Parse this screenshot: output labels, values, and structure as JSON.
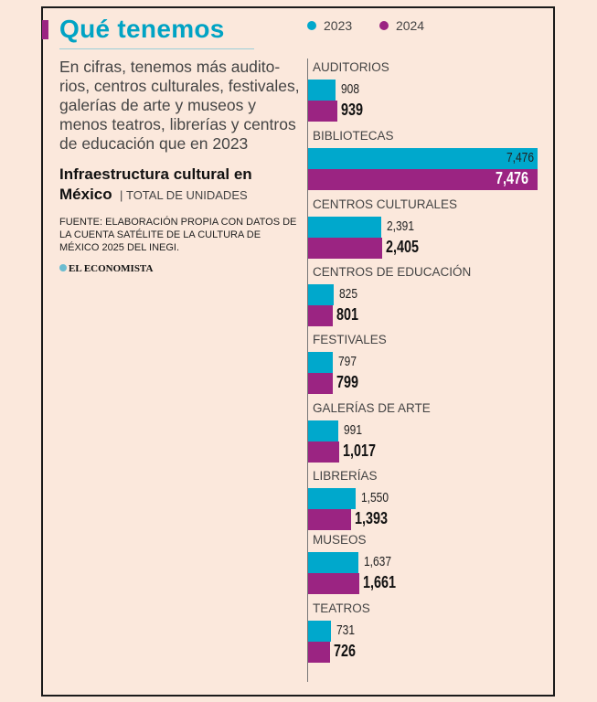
{
  "header": {
    "title": "Qué tenemos",
    "description": "En cifras, tenemos más audito-rios, centros culturales, festivales, galerías de arte y museos y menos teatros, librerías y centros de educación que en 2023",
    "subtitle_bold": "Infraestructura cultural en México",
    "subtitle_units": "TOTAL DE UNIDADES",
    "source": "FUENTE: ELABORACIÓN PROPIA CON DATOS DE LA CUENTA SATÉLITE DE LA CULTURA DE MÉXICO 2025 DEL INEGI.",
    "logo": "EL ECONOMISTA"
  },
  "colors": {
    "2023": "#00a8cc",
    "2024": "#9b2482"
  },
  "chart_data": {
    "type": "bar",
    "orientation": "horizontal",
    "title": "Infraestructura cultural en México",
    "unit": "TOTAL DE UNIDADES",
    "legend": "top",
    "grid": false,
    "categories": [
      "AUDITORIOS",
      "BIBLIOTECAS",
      "CENTROS CULTURALES",
      "CENTROS DE EDUCACIÓN",
      "FESTIVALES",
      "GALERÍAS DE ARTE",
      "LIBRERÍAS",
      "MUSEOS",
      "TEATROS"
    ],
    "series": [
      {
        "name": "2023",
        "values": [
          908,
          7476,
          2391,
          825,
          797,
          991,
          1550,
          1637,
          731
        ],
        "labels": [
          "908",
          "7,476",
          "2,391",
          "825",
          "797",
          "991",
          "1,550",
          "1,637",
          "731"
        ]
      },
      {
        "name": "2024",
        "values": [
          939,
          7476,
          2405,
          801,
          799,
          1017,
          1393,
          1661,
          726
        ],
        "labels": [
          "939",
          "7,476",
          "2,405",
          "801",
          "799",
          "1,017",
          "1,393",
          "1,661",
          "726"
        ]
      }
    ]
  }
}
